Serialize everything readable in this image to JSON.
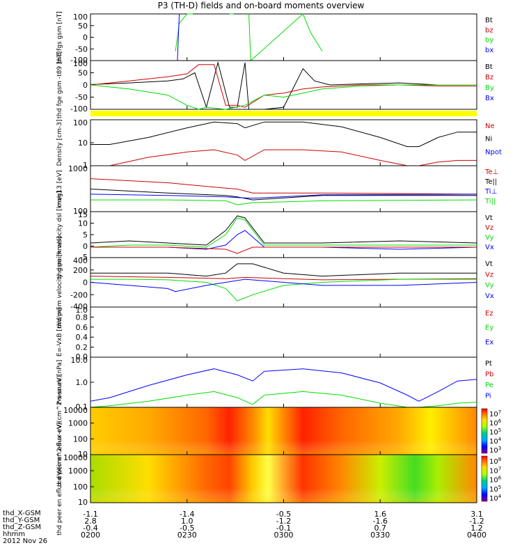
{
  "title": "P3 (TH-D) fields and on-board moments overview",
  "date_label": "2012 Nov 26",
  "colors": {
    "black": "#000000",
    "red": "#cc0000",
    "green": "#00dd00",
    "blue": "#0000ff",
    "yellow": "#ffff00"
  },
  "time_axis": {
    "ticks": [
      "0200",
      "0230",
      "0300",
      "0330",
      "0400"
    ],
    "rows": [
      {
        "label": "thd_X-GSM",
        "values": [
          "-1.1",
          "-1.4",
          "-0.5",
          "1.6",
          "3.1"
        ]
      },
      {
        "label": "thd_Y-GSM",
        "values": [
          "2.8",
          "1.0",
          "-1.2",
          "-1.6",
          "-1.2"
        ]
      },
      {
        "label": "thd_Z-GSM",
        "values": [
          "-0.4",
          "-0.5",
          "-0.1",
          "0.7",
          "1.2"
        ]
      },
      {
        "label": "hhmm",
        "values": [
          "0200",
          "0230",
          "0300",
          "0330",
          "0400"
        ]
      }
    ]
  },
  "chart_data": [
    {
      "type": "line",
      "ylabel": "thd fgs gsm [nT]",
      "yticks": [
        "100",
        "50",
        "0",
        "-50",
        "-100"
      ],
      "ylim": [
        -100,
        100
      ],
      "legend": [
        {
          "name": "Bt",
          "color": "#000000"
        },
        {
          "name": "bz",
          "color": "#cc0000"
        },
        {
          "name": "by",
          "color": "#00dd00"
        },
        {
          "name": "bx",
          "color": "#0000ff"
        }
      ],
      "series": [
        {
          "name": "by",
          "color": "#00dd00",
          "x": [
            0.22,
            0.23,
            0.25,
            0.26,
            0.265
          ],
          "y": [
            -60,
            60,
            100,
            100,
            100
          ]
        },
        {
          "name": "by",
          "color": "#00dd00",
          "x": [
            0.36,
            0.37
          ],
          "y": [
            100,
            100
          ]
        },
        {
          "name": "by",
          "color": "#00dd00",
          "x": [
            0.41,
            0.415,
            0.55,
            0.57,
            0.6
          ],
          "y": [
            100,
            -100,
            100,
            20,
            -60
          ]
        },
        {
          "name": "bx",
          "color": "#0000ff",
          "x": [
            0.225,
            0.23
          ],
          "y": [
            -100,
            100
          ]
        }
      ]
    },
    {
      "type": "line",
      "ylabel": "thd fge gsm -t89 [nT]",
      "yticks": [
        "100",
        "50",
        "0",
        "-50",
        "-100"
      ],
      "ylim": [
        -120,
        120
      ],
      "legend": [
        {
          "name": "Bt",
          "color": "#000000"
        },
        {
          "name": "Bz",
          "color": "#cc0000"
        },
        {
          "name": "By",
          "color": "#00dd00"
        },
        {
          "name": "Bx",
          "color": "#0000ff"
        }
      ],
      "series": [
        {
          "name": "Bt",
          "color": "#000000",
          "x": [
            0,
            0.1,
            0.2,
            0.24,
            0.27,
            0.3,
            0.33,
            0.36,
            0.38,
            0.4,
            0.41,
            0.45,
            0.5,
            0.55,
            0.58,
            0.62,
            0.7,
            0.8,
            0.9,
            1
          ],
          "y": [
            2,
            10,
            20,
            30,
            60,
            -110,
            110,
            -110,
            -110,
            110,
            -120,
            -120,
            -110,
            80,
            20,
            0,
            5,
            10,
            0,
            0
          ]
        },
        {
          "name": "Bz",
          "color": "#cc0000",
          "x": [
            0,
            0.1,
            0.2,
            0.25,
            0.28,
            0.32,
            0.35,
            0.38,
            0.4,
            0.45,
            0.5,
            0.55,
            0.6,
            0.7,
            0.8,
            0.9,
            1
          ],
          "y": [
            0,
            20,
            40,
            55,
            100,
            100,
            -100,
            -100,
            -110,
            -50,
            -40,
            -20,
            -10,
            0,
            0,
            -5,
            -5
          ]
        },
        {
          "name": "By",
          "color": "#00dd00",
          "x": [
            0,
            0.1,
            0.2,
            0.25,
            0.28,
            0.3,
            0.35,
            0.4,
            0.45,
            0.5,
            0.55,
            0.6,
            0.7,
            0.8,
            0.9,
            1
          ],
          "y": [
            0,
            -20,
            -50,
            -100,
            -120,
            -110,
            -120,
            -100,
            -50,
            -60,
            -40,
            -20,
            -5,
            0,
            0,
            0
          ]
        }
      ]
    },
    {
      "type": "line",
      "ylabel": "Density [cm-3]",
      "scale": "log",
      "yticks": [
        "100",
        "10",
        "1"
      ],
      "ylim": [
        0.5,
        200
      ],
      "legend": [
        {
          "name": "Ne",
          "color": "#cc0000"
        },
        {
          "name": "Ni",
          "color": "#000000"
        },
        {
          "name": "Npot",
          "color": "#0000ff"
        }
      ],
      "series": [
        {
          "name": "Ni",
          "color": "#000000",
          "x": [
            0,
            0.05,
            0.15,
            0.25,
            0.32,
            0.38,
            0.4,
            0.45,
            0.55,
            0.65,
            0.75,
            0.82,
            0.85,
            0.9,
            0.95,
            1
          ],
          "y": [
            8,
            8,
            20,
            70,
            150,
            120,
            70,
            150,
            150,
            80,
            20,
            6,
            6,
            20,
            40,
            40
          ]
        },
        {
          "name": "Ne",
          "color": "#cc0000",
          "x": [
            0,
            0.05,
            0.15,
            0.25,
            0.32,
            0.38,
            0.4,
            0.45,
            0.55,
            0.65,
            0.75,
            0.82,
            0.85,
            0.9,
            0.95,
            1
          ],
          "y": [
            0.5,
            0.5,
            1.5,
            3,
            4,
            2,
            1,
            4,
            4,
            3,
            1,
            0.5,
            0.5,
            0.8,
            1,
            1
          ]
        }
      ]
    },
    {
      "type": "line",
      "ylabel": "mag13 [eV]",
      "scale": "log",
      "yticks": [
        "1000",
        "100"
      ],
      "ylim": [
        100,
        1500
      ],
      "legend": [
        {
          "name": "Te⊥",
          "color": "#cc0000"
        },
        {
          "name": "Te||",
          "color": "#000000"
        },
        {
          "name": "Ti⊥",
          "color": "#0000ff"
        },
        {
          "name": "Ti||",
          "color": "#00dd00"
        }
      ],
      "series": [
        {
          "name": "Te⊥",
          "color": "#cc0000",
          "x": [
            0,
            0.2,
            0.35,
            0.38,
            0.42,
            0.6,
            1
          ],
          "y": [
            700,
            550,
            400,
            380,
            300,
            300,
            280
          ]
        },
        {
          "name": "Te||",
          "color": "#000000",
          "x": [
            0,
            0.2,
            0.35,
            0.38,
            0.42,
            0.6,
            1
          ],
          "y": [
            380,
            300,
            260,
            240,
            200,
            260,
            260
          ]
        },
        {
          "name": "Ti⊥",
          "color": "#0000ff",
          "x": [
            0,
            0.2,
            0.35,
            0.38,
            0.42,
            0.6,
            1
          ],
          "y": [
            280,
            260,
            240,
            230,
            220,
            270,
            280
          ]
        },
        {
          "name": "Ti||",
          "color": "#00dd00",
          "x": [
            0,
            0.2,
            0.35,
            0.38,
            0.42,
            0.6,
            1
          ],
          "y": [
            200,
            200,
            190,
            150,
            170,
            190,
            200
          ]
        }
      ]
    },
    {
      "type": "line",
      "ylabel": "thd peim velocity dsl [km/s]",
      "yticks": [
        "15",
        "10",
        "5",
        "0",
        "-5"
      ],
      "ylim": [
        -5,
        17
      ],
      "legend": [
        {
          "name": "Vt",
          "color": "#000000"
        },
        {
          "name": "Vz",
          "color": "#cc0000"
        },
        {
          "name": "Vy",
          "color": "#00dd00"
        },
        {
          "name": "Vx",
          "color": "#0000ff"
        }
      ],
      "series": [
        {
          "name": "Vt",
          "color": "#000000",
          "x": [
            0,
            0.1,
            0.2,
            0.3,
            0.35,
            0.38,
            0.4,
            0.45,
            0.6,
            0.8,
            1
          ],
          "y": [
            2,
            3,
            2,
            1,
            8,
            15,
            14,
            2,
            2,
            3,
            2
          ]
        },
        {
          "name": "Vy",
          "color": "#00dd00",
          "x": [
            0,
            0.1,
            0.2,
            0.3,
            0.35,
            0.38,
            0.4,
            0.45,
            0.6,
            0.8,
            1
          ],
          "y": [
            0,
            1,
            1,
            0,
            6,
            14,
            13,
            1,
            1,
            1,
            1
          ]
        },
        {
          "name": "Vx",
          "color": "#0000ff",
          "x": [
            0,
            0.1,
            0.2,
            0.3,
            0.35,
            0.38,
            0.4,
            0.45,
            0.6,
            0.8,
            1
          ],
          "y": [
            0,
            0,
            0,
            -1,
            1,
            6,
            8,
            0,
            0,
            -1,
            0
          ]
        },
        {
          "name": "Vz",
          "color": "#cc0000",
          "x": [
            0,
            0.2,
            0.35,
            0.38,
            0.42,
            0.6,
            1
          ],
          "y": [
            0,
            0,
            -1,
            -3,
            0,
            0,
            0
          ]
        }
      ]
    },
    {
      "type": "line",
      "ylabel": "thd peim velocity gsm [km/s]",
      "yticks": [
        "400",
        "200",
        "0",
        "-200",
        "-400"
      ],
      "ylim": [
        -400,
        400
      ],
      "legend": [
        {
          "name": "Vt",
          "color": "#000000"
        },
        {
          "name": "Vz",
          "color": "#cc0000"
        },
        {
          "name": "Vy",
          "color": "#00dd00"
        },
        {
          "name": "Vx",
          "color": "#0000ff"
        }
      ],
      "series": [
        {
          "name": "Vt",
          "color": "#000000",
          "x": [
            0,
            0.1,
            0.2,
            0.3,
            0.35,
            0.38,
            0.42,
            0.5,
            0.6,
            0.8,
            1
          ],
          "y": [
            150,
            150,
            150,
            100,
            150,
            300,
            300,
            150,
            100,
            150,
            150
          ]
        },
        {
          "name": "Vz",
          "color": "#cc0000",
          "x": [
            0,
            0.2,
            0.35,
            0.4,
            0.6,
            1
          ],
          "y": [
            100,
            80,
            60,
            80,
            40,
            60
          ]
        },
        {
          "name": "Vy",
          "color": "#00dd00",
          "x": [
            0,
            0.1,
            0.2,
            0.3,
            0.35,
            0.38,
            0.42,
            0.5,
            0.6,
            0.8,
            1
          ],
          "y": [
            50,
            50,
            40,
            0,
            -100,
            -300,
            -200,
            -50,
            0,
            50,
            50
          ]
        },
        {
          "name": "Vx",
          "color": "#0000ff",
          "x": [
            0,
            0.1,
            0.2,
            0.22,
            0.3,
            0.35,
            0.4,
            0.5,
            0.6,
            0.8,
            1
          ],
          "y": [
            0,
            -50,
            -100,
            -150,
            -50,
            0,
            50,
            0,
            -50,
            -50,
            0
          ]
        }
      ]
    },
    {
      "type": "line",
      "ylabel": "E=-VxB [mV/m]",
      "yticks": [
        "1.0",
        "0.8",
        "0.6",
        "0.4",
        "0.2",
        "0.0"
      ],
      "ylim": [
        0,
        1
      ],
      "legend": [
        {
          "name": "Ez",
          "color": "#cc0000"
        },
        {
          "name": "Ey",
          "color": "#00dd00"
        },
        {
          "name": "Ex",
          "color": "#0000ff"
        }
      ],
      "series": []
    },
    {
      "type": "line",
      "ylabel": "Pressure [nPa]",
      "scale": "log",
      "yticks": [
        "10.0",
        "1.0",
        "0.1"
      ],
      "ylim": [
        0.05,
        15
      ],
      "legend": [
        {
          "name": "Pt",
          "color": "#000000"
        },
        {
          "name": "Pb",
          "color": "#cc0000"
        },
        {
          "name": "Pe",
          "color": "#00dd00"
        },
        {
          "name": "Pi",
          "color": "#0000ff"
        }
      ],
      "series": [
        {
          "name": "Pi",
          "color": "#0000ff",
          "x": [
            0,
            0.05,
            0.15,
            0.25,
            0.32,
            0.38,
            0.42,
            0.45,
            0.55,
            0.65,
            0.75,
            0.82,
            0.85,
            0.9,
            0.95,
            1
          ],
          "y": [
            0.1,
            0.15,
            0.6,
            2,
            4,
            2,
            1,
            3,
            4,
            2.5,
            0.8,
            0.2,
            0.1,
            0.3,
            1,
            1.2
          ]
        },
        {
          "name": "Pe",
          "color": "#00dd00",
          "x": [
            0,
            0.05,
            0.15,
            0.25,
            0.32,
            0.38,
            0.42,
            0.45,
            0.55,
            0.65,
            0.75,
            0.82,
            0.85,
            0.9,
            0.95,
            1
          ],
          "y": [
            0.05,
            0.06,
            0.1,
            0.2,
            0.3,
            0.15,
            0.07,
            0.2,
            0.3,
            0.2,
            0.08,
            0.05,
            0.05,
            0.06,
            0.08,
            0.09
          ]
        }
      ]
    },
    {
      "type": "heatmap",
      "ylabel": "thd peir en eflux eV/(cm^2-s-sr-eV)",
      "scale": "log",
      "yticks": [
        "10000",
        "1000",
        "100",
        "10"
      ],
      "colorbar_ticks": [
        "10^7",
        "10^6",
        "10^5",
        "10^4",
        "10^3"
      ]
    },
    {
      "type": "heatmap",
      "ylabel": "thd peer en eflux eV/(cm^2-s-sr-eV)",
      "scale": "log",
      "yticks": [
        "10000",
        "1000",
        "100",
        "10"
      ],
      "colorbar_ticks": [
        "10^8",
        "10^7",
        "10^6",
        "10^5",
        "10^4"
      ]
    }
  ]
}
